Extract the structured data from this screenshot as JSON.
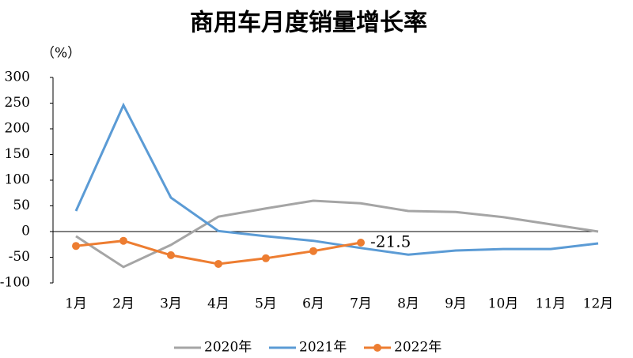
{
  "chart_data": {
    "type": "line",
    "title": "商用车月度销量增长率",
    "y_unit": "（%）",
    "categories": [
      "1月",
      "2月",
      "3月",
      "4月",
      "5月",
      "6月",
      "7月",
      "8月",
      "9月",
      "10月",
      "11月",
      "12月"
    ],
    "series": [
      {
        "name": "2020年",
        "color": "#a5a5a5",
        "marker": false,
        "values": [
          -9,
          -69,
          -26,
          29,
          45,
          60,
          55,
          40,
          38,
          28,
          14,
          0
        ]
      },
      {
        "name": "2021年",
        "color": "#5b9bd5",
        "marker": false,
        "values": [
          40,
          246,
          66,
          1,
          -9,
          -18,
          -32,
          -45,
          -37,
          -34,
          -34,
          -23
        ]
      },
      {
        "name": "2022年",
        "color": "#ed7d31",
        "marker": true,
        "label_last": true,
        "values": [
          -28,
          -18,
          -46,
          -63,
          -52,
          -38,
          -21.5,
          null,
          null,
          null,
          null,
          null
        ]
      }
    ],
    "ylim": [
      -100,
      300
    ],
    "yticks": [
      -100,
      -50,
      0,
      50,
      100,
      150,
      200,
      250,
      300
    ],
    "grid": false,
    "legend": "bottom"
  }
}
